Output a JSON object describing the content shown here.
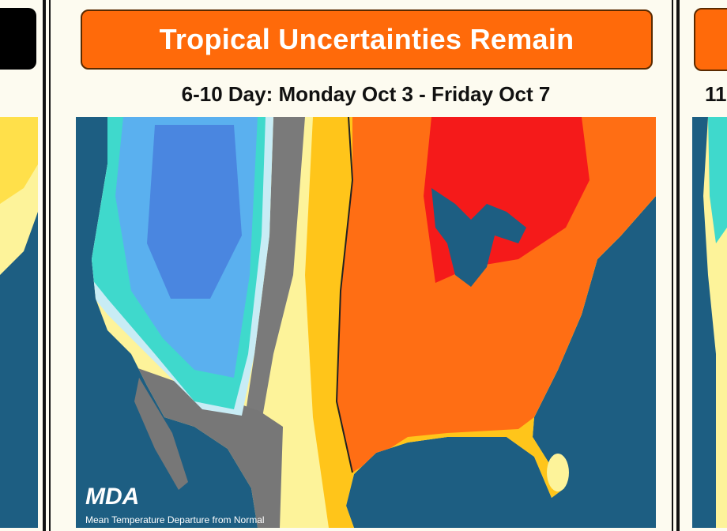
{
  "header": {
    "title": "Tropical Uncertainties Remain"
  },
  "subtitle": "6-10 Day: Monday Oct 3 - Friday Oct 7",
  "map": {
    "logo": "MDA",
    "caption": "Mean Temperature Departure from Normal"
  },
  "right_panel": {
    "subtitle": "11"
  }
}
